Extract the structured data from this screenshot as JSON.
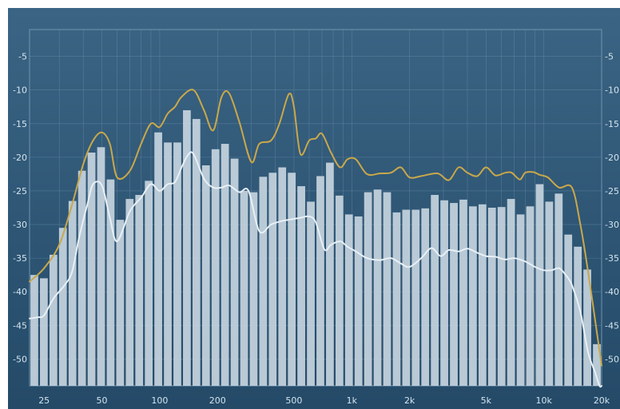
{
  "chart_data": {
    "type": "bar",
    "x_scale": "log",
    "xlim": [
      21,
      20000
    ],
    "ylim": [
      -54,
      -1
    ],
    "grid": true,
    "x_ticks": [
      {
        "value": 25,
        "label": "25"
      },
      {
        "value": 50,
        "label": "50"
      },
      {
        "value": 100,
        "label": "100"
      },
      {
        "value": 200,
        "label": "200"
      },
      {
        "value": 500,
        "label": "500"
      },
      {
        "value": 1000,
        "label": "1k"
      },
      {
        "value": 2000,
        "label": "2k"
      },
      {
        "value": 5000,
        "label": "5k"
      },
      {
        "value": 10000,
        "label": "10k"
      },
      {
        "value": 20000,
        "label": "20k"
      }
    ],
    "y_ticks": [
      {
        "value": -5,
        "label": "-5"
      },
      {
        "value": -10,
        "label": "-10"
      },
      {
        "value": -15,
        "label": "-15"
      },
      {
        "value": -20,
        "label": "-20"
      },
      {
        "value": -25,
        "label": "-25"
      },
      {
        "value": -30,
        "label": "-30"
      },
      {
        "value": -35,
        "label": "-35"
      },
      {
        "value": -40,
        "label": "-40"
      },
      {
        "value": -45,
        "label": "-45"
      },
      {
        "value": -50,
        "label": "-50"
      }
    ],
    "bars": [
      -37.5,
      -38,
      -34.5,
      -30.5,
      -26.5,
      -22,
      -19.3,
      -18.5,
      -23.3,
      -29.3,
      -26.2,
      -25.6,
      -23.5,
      -16.3,
      -17.8,
      -17.8,
      -13,
      -14.3,
      -21.2,
      -18.8,
      -18,
      -20.2,
      -25,
      -25.2,
      -22.9,
      -22.3,
      -21.5,
      -22.3,
      -24.3,
      -26.6,
      -22.8,
      -20.8,
      -25.7,
      -28.5,
      -28.8,
      -25.2,
      -24.8,
      -25.2,
      -28.2,
      -27.8,
      -27.8,
      -27.6,
      -25.6,
      -26.4,
      -26.8,
      -26.3,
      -27.3,
      -27,
      -27.5,
      -27.4,
      -26.2,
      -28.5,
      -27.3,
      -24,
      -26.6,
      -25.4,
      -31.5,
      -33.3,
      -36.7,
      -47.8
    ],
    "colors": {
      "background": "#2e5674",
      "bars": "#c6d4de",
      "peak_line": "#c9a84a",
      "avg_line": "#e8f0f6",
      "grid": "#6f95ae",
      "text": "#d4e4ee"
    },
    "series": [
      {
        "values_x": [
          21,
          25,
          30,
          35,
          40,
          45,
          50,
          55,
          60,
          70,
          80,
          90,
          100,
          110,
          120,
          130,
          150,
          170,
          190,
          210,
          230,
          260,
          300,
          330,
          380,
          420,
          470,
          500,
          540,
          600,
          650,
          700,
          780,
          870,
          950,
          1050,
          1200,
          1400,
          1600,
          1800,
          2000,
          2300,
          2800,
          3200,
          3600,
          4000,
          4500,
          5000,
          5600,
          6300,
          6800,
          7500,
          8000,
          8800,
          9500,
          10500,
          12000,
          14000,
          15500,
          17000,
          19000,
          20000
        ],
        "values": [
          -38.5,
          -36.5,
          -33,
          -27,
          -21,
          -17.5,
          -16.3,
          -18,
          -23,
          -22,
          -18,
          -15,
          -15.5,
          -13.5,
          -12.5,
          -11,
          -10,
          -13,
          -16,
          -11,
          -10.5,
          -14.8,
          -20.7,
          -18,
          -17.5,
          -15,
          -10.6,
          -12.5,
          -19.5,
          -17.5,
          -17.2,
          -16.5,
          -19.3,
          -21.5,
          -20.3,
          -20.3,
          -22.5,
          -22.4,
          -22.3,
          -21.5,
          -23,
          -22.8,
          -22.4,
          -23.4,
          -21.5,
          -22.3,
          -22.8,
          -21.5,
          -22.7,
          -22.3,
          -22.3,
          -23.3,
          -22.3,
          -22.2,
          -22.6,
          -23,
          -24.5,
          -24.5,
          -30,
          -37,
          -46.5,
          -51
        ]
      },
      {
        "values_x": [
          21,
          23,
          25,
          28,
          32,
          35,
          38,
          42,
          45,
          50,
          55,
          60,
          70,
          80,
          90,
          100,
          110,
          120,
          130,
          140,
          150,
          170,
          190,
          210,
          230,
          260,
          290,
          330,
          380,
          430,
          470,
          540,
          600,
          650,
          720,
          780,
          870,
          950,
          1050,
          1200,
          1400,
          1600,
          1800,
          2000,
          2300,
          2600,
          2900,
          3200,
          3600,
          4000,
          4500,
          5000,
          5600,
          6300,
          7000,
          8000,
          9000,
          10000,
          11000,
          12000,
          13000,
          14000,
          15500,
          17000,
          18500,
          19500,
          20000
        ],
        "values": [
          -44,
          -43.8,
          -43.5,
          -41,
          -39,
          -37,
          -32,
          -27,
          -24,
          -24.2,
          -29,
          -32.5,
          -28,
          -26,
          -24,
          -25,
          -24,
          -23.7,
          -21.5,
          -19.7,
          -19.5,
          -23.2,
          -24.5,
          -24.5,
          -24.2,
          -25.2,
          -25,
          -31,
          -30,
          -29.5,
          -29.3,
          -29,
          -28.8,
          -29.7,
          -33.7,
          -33,
          -32.5,
          -33.3,
          -34,
          -35,
          -35.3,
          -35,
          -35.8,
          -36.3,
          -35,
          -33.5,
          -34.7,
          -33.8,
          -34,
          -33.6,
          -34.2,
          -34.7,
          -34.8,
          -35.2,
          -35,
          -35.5,
          -36.3,
          -36.8,
          -36.8,
          -36.5,
          -37.5,
          -39,
          -43,
          -49,
          -52,
          -54,
          -54
        ]
      }
    ]
  }
}
